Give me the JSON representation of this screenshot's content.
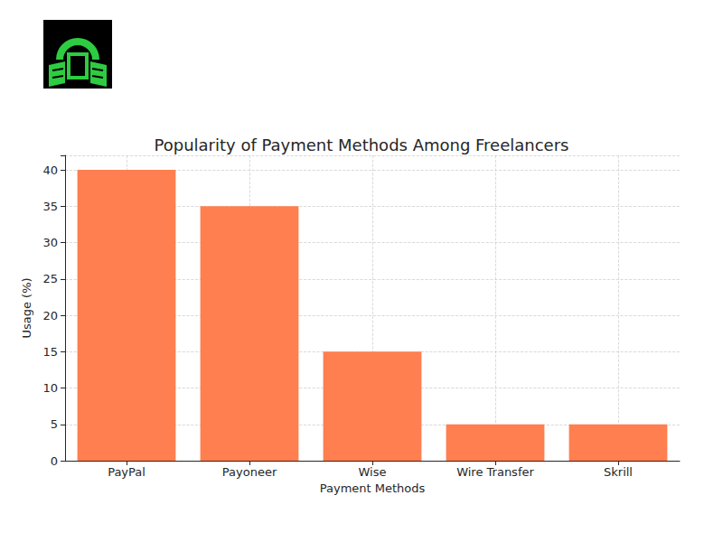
{
  "chart_data": {
    "type": "bar",
    "title": "Popularity of Payment Methods Among Freelancers",
    "x_label": "Payment Methods",
    "y_label": "Usage (%)",
    "categories": [
      "PayPal",
      "Payoneer",
      "Wise",
      "Wire Transfer",
      "Skrill"
    ],
    "values": [
      40,
      35,
      15,
      5,
      5
    ],
    "color": "#ff7f50",
    "ylim": [
      0,
      42
    ],
    "yticks": [
      0,
      5,
      10,
      15,
      20,
      25,
      30,
      35,
      40
    ],
    "grid": true
  }
}
